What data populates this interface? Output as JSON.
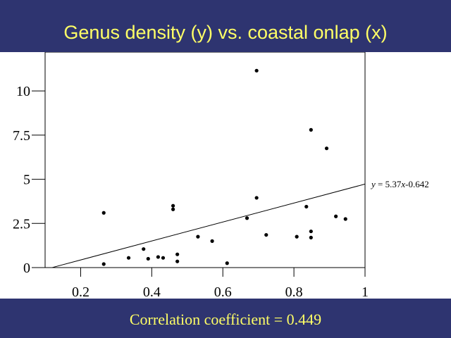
{
  "page": {
    "title": "Genus density (y) vs. coastal onlap (x)",
    "footer": "Correlation coefficient = 0.449"
  },
  "chart_data": {
    "type": "scatter",
    "title": "Genus density (y) vs. coastal onlap (x)",
    "xlabel": "",
    "ylabel": "",
    "xlim": [
      0.1,
      1.0
    ],
    "ylim": [
      0,
      12.2
    ],
    "x_ticks": [
      0.2,
      0.4,
      0.6,
      0.8,
      1.0
    ],
    "x_tick_labels": [
      "0.2",
      "0.4",
      "0.6",
      "0.8",
      "1"
    ],
    "y_ticks": [
      0,
      2.5,
      5,
      7.5,
      10
    ],
    "y_tick_labels": [
      "0",
      "2.5",
      "5",
      "7.5",
      "10"
    ],
    "grid": false,
    "colors": {
      "background": "#2e3470",
      "plot_background": "#ffffff",
      "text_accent": "#ffff66",
      "marks": "#000000"
    },
    "series": [
      {
        "points": [
          {
            "x": 0.265,
            "y": 3.1
          },
          {
            "x": 0.265,
            "y": 0.2
          },
          {
            "x": 0.335,
            "y": 0.55
          },
          {
            "x": 0.377,
            "y": 1.05
          },
          {
            "x": 0.39,
            "y": 0.5
          },
          {
            "x": 0.418,
            "y": 0.6
          },
          {
            "x": 0.432,
            "y": 0.55
          },
          {
            "x": 0.46,
            "y": 3.5
          },
          {
            "x": 0.46,
            "y": 3.3
          },
          {
            "x": 0.472,
            "y": 0.75
          },
          {
            "x": 0.472,
            "y": 0.35
          },
          {
            "x": 0.53,
            "y": 1.75
          },
          {
            "x": 0.57,
            "y": 1.5
          },
          {
            "x": 0.612,
            "y": 0.25
          },
          {
            "x": 0.668,
            "y": 2.8
          },
          {
            "x": 0.695,
            "y": 11.15
          },
          {
            "x": 0.695,
            "y": 3.95
          },
          {
            "x": 0.722,
            "y": 1.85
          },
          {
            "x": 0.808,
            "y": 1.75
          },
          {
            "x": 0.835,
            "y": 3.45
          },
          {
            "x": 0.848,
            "y": 7.8
          },
          {
            "x": 0.848,
            "y": 2.05
          },
          {
            "x": 0.848,
            "y": 1.7
          },
          {
            "x": 0.892,
            "y": 6.75
          },
          {
            "x": 0.918,
            "y": 2.9
          },
          {
            "x": 0.945,
            "y": 2.75
          }
        ]
      }
    ],
    "regression": {
      "slope": 5.37,
      "intercept": -0.642,
      "x_range": [
        0.12,
        1.0
      ],
      "label": "y = 5.37x-0.642",
      "label_parts": {
        "y": "y",
        "mid": " = 5.37",
        "x": "x",
        "tail": "-0.642"
      }
    },
    "annotation": "Correlation coefficient = 0.449"
  }
}
